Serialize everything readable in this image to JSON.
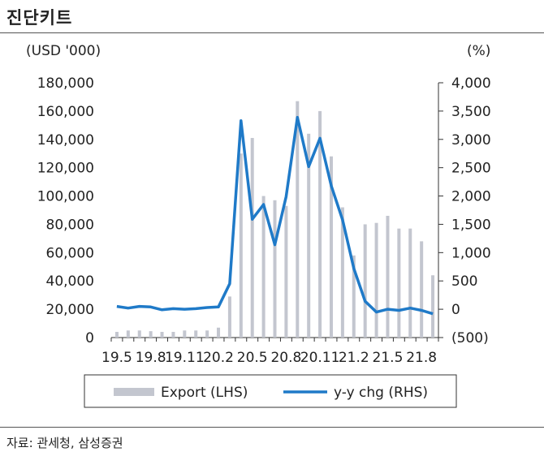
{
  "header": {
    "title": "진단키트"
  },
  "footer": {
    "source": "자료: 관세청, 삼성증권"
  },
  "chart_data": {
    "type": "bar+line",
    "left_unit": "(USD '000)",
    "right_unit": "(%)",
    "left_axis": {
      "min": 0,
      "max": 180000,
      "step": 20000,
      "tick_labels": [
        "0",
        "20,000",
        "40,000",
        "60,000",
        "80,000",
        "100,000",
        "120,000",
        "140,000",
        "160,000",
        "180,000"
      ]
    },
    "right_axis": {
      "min": -500,
      "max": 4000,
      "step": 500,
      "tick_labels": [
        "(500)",
        "0",
        "500",
        "1,000",
        "1,500",
        "2,000",
        "2,500",
        "3,000",
        "3,500",
        "4,000"
      ]
    },
    "x_tick_labels": [
      "19.5",
      "19.8",
      "19.11",
      "20.2",
      "20.5",
      "20.8",
      "20.11",
      "21.2",
      "21.5",
      "21.8"
    ],
    "categories": [
      "19.5",
      "19.6",
      "19.7",
      "19.8",
      "19.9",
      "19.10",
      "19.11",
      "19.12",
      "20.1",
      "20.2",
      "20.3",
      "20.4",
      "20.5",
      "20.6",
      "20.7",
      "20.8",
      "20.9",
      "20.10",
      "20.11",
      "20.12",
      "21.1",
      "21.2",
      "21.3",
      "21.4",
      "21.5",
      "21.6",
      "21.7",
      "21.8",
      "21.9"
    ],
    "series": [
      {
        "name": "Export (LHS)",
        "axis": "left",
        "type": "bar",
        "color": "#c3c6cf",
        "values": [
          4000,
          5000,
          5000,
          4500,
          4000,
          4000,
          5000,
          5000,
          5000,
          7000,
          29000,
          130000,
          141000,
          100000,
          97000,
          93000,
          167000,
          144000,
          160000,
          128000,
          92000,
          58000,
          80000,
          81000,
          86000,
          77000,
          77000,
          68000,
          44000
        ]
      },
      {
        "name": "y-y chg (RHS)",
        "axis": "right",
        "type": "line",
        "color": "#1f7ac8",
        "values": [
          50,
          20,
          50,
          40,
          -10,
          10,
          0,
          10,
          30,
          40,
          450,
          3330,
          1590,
          1850,
          1140,
          1990,
          3390,
          2520,
          3020,
          2180,
          1580,
          720,
          140,
          -50,
          0,
          -20,
          20,
          -20,
          -80
        ]
      }
    ],
    "legend": {
      "position": "bottom",
      "labels": [
        "Export (LHS)",
        "y-y chg (RHS)"
      ]
    }
  }
}
